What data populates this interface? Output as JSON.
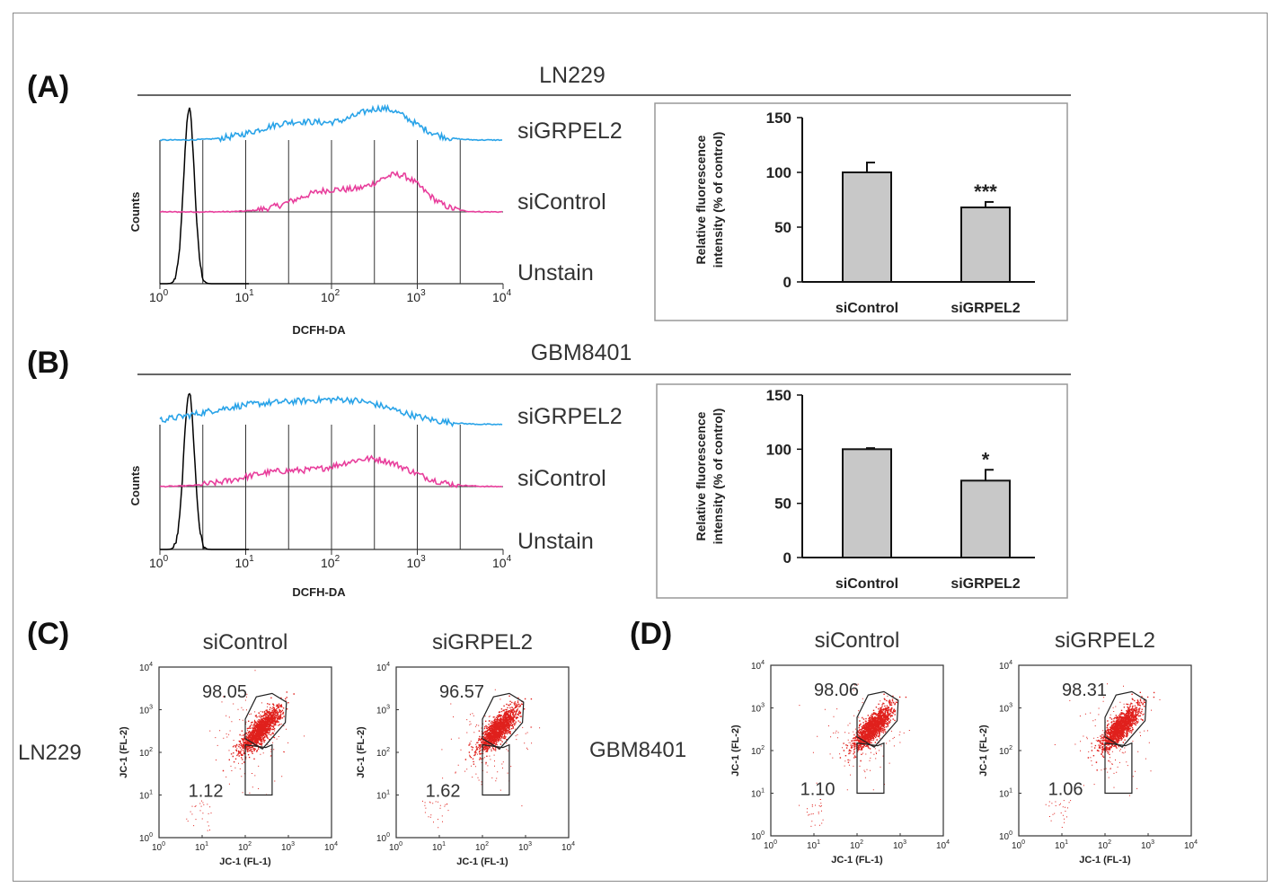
{
  "panels": {
    "A": {
      "letter": "(A)",
      "cell_line": "LN229"
    },
    "B": {
      "letter": "(B)",
      "cell_line": "GBM8401"
    },
    "C": {
      "letter": "(C)",
      "cell_line": "LN229"
    },
    "D": {
      "letter": "(D)",
      "cell_line": "GBM8401"
    }
  },
  "histogram": {
    "traces": [
      "siGRPEL2",
      "siControl",
      "Unstain"
    ],
    "trace_colors": {
      "siGRPEL2": "#29a3e8",
      "siControl": "#e83e9c",
      "Unstain": "#000000"
    },
    "ylabel": "Counts",
    "xlabel": "DCFH-DA",
    "xticks": [
      {
        "base": "10",
        "exp": "0"
      },
      {
        "base": "10",
        "exp": "1"
      },
      {
        "base": "10",
        "exp": "2"
      },
      {
        "base": "10",
        "exp": "3"
      },
      {
        "base": "10",
        "exp": "4"
      }
    ]
  },
  "scatter": {
    "conditions": [
      "siControl",
      "siGRPEL2"
    ],
    "xlabel": "JC-1 (FL-1)",
    "ylabel": "JC-1 (FL-2)",
    "ticks": [
      {
        "base": "10",
        "exp": "0"
      },
      {
        "base": "10",
        "exp": "1"
      },
      {
        "base": "10",
        "exp": "2"
      },
      {
        "base": "10",
        "exp": "3"
      },
      {
        "base": "10",
        "exp": "4"
      }
    ],
    "dot_color": "#e0201c"
  },
  "chart_data": [
    {
      "panel": "A",
      "type": "bar",
      "title": "LN229",
      "categories": [
        "siControl",
        "siGRPEL2"
      ],
      "values": [
        100,
        68
      ],
      "errors": [
        9,
        5
      ],
      "significance": [
        "",
        "***"
      ],
      "ylabel_lines": [
        "Relative fluorescence",
        "intensity (% of control)"
      ],
      "ylim": [
        0,
        150
      ],
      "yticks": [
        0,
        50,
        100,
        150
      ],
      "bar_color": "#c8c8c8"
    },
    {
      "panel": "B",
      "type": "bar",
      "title": "GBM8401",
      "categories": [
        "siControl",
        "siGRPEL2"
      ],
      "values": [
        100,
        71
      ],
      "errors": [
        1,
        10
      ],
      "significance": [
        "",
        "*"
      ],
      "ylabel_lines": [
        "Relative fluorescence",
        "intensity (% of control)"
      ],
      "ylim": [
        0,
        150
      ],
      "yticks": [
        0,
        50,
        100,
        150
      ],
      "bar_color": "#c8c8c8"
    },
    {
      "panel": "C",
      "type": "scatter",
      "title": "siControl",
      "cell_line": "LN229",
      "gate_high_pct": "98.05",
      "gate_low_pct": "1.12",
      "xlabel": "JC-1 (FL-1)",
      "ylabel": "JC-1 (FL-2)",
      "xlim": [
        1,
        10000
      ],
      "ylim": [
        1,
        10000
      ]
    },
    {
      "panel": "C",
      "type": "scatter",
      "title": "siGRPEL2",
      "cell_line": "LN229",
      "gate_high_pct": "96.57",
      "gate_low_pct": "1.62",
      "xlabel": "JC-1 (FL-1)",
      "ylabel": "JC-1 (FL-2)",
      "xlim": [
        1,
        10000
      ],
      "ylim": [
        1,
        10000
      ]
    },
    {
      "panel": "D",
      "type": "scatter",
      "title": "siControl",
      "cell_line": "GBM8401",
      "gate_high_pct": "98.06",
      "gate_low_pct": "1.10",
      "xlabel": "JC-1 (FL-1)",
      "ylabel": "JC-1 (FL-2)",
      "xlim": [
        1,
        10000
      ],
      "ylim": [
        1,
        10000
      ]
    },
    {
      "panel": "D",
      "type": "scatter",
      "title": "siGRPEL2",
      "cell_line": "GBM8401",
      "gate_high_pct": "98.31",
      "gate_low_pct": "1.06",
      "xlabel": "JC-1 (FL-1)",
      "ylabel": "JC-1 (FL-2)",
      "xlim": [
        1,
        10000
      ],
      "ylim": [
        1,
        10000
      ]
    }
  ]
}
